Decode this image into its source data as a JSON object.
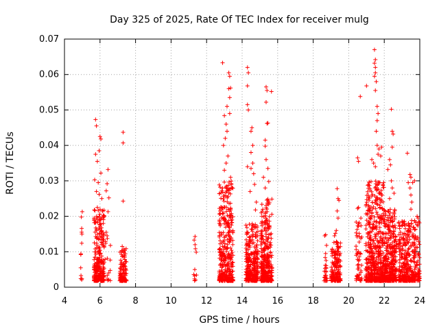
{
  "chart_data": {
    "type": "scatter",
    "title": "Day 325 of 2025, Rate Of TEC Index for receiver mulg",
    "xlabel": "GPS time / hours",
    "ylabel": "ROTI / TECUs",
    "xlim": [
      4,
      24
    ],
    "ylim": [
      0,
      0.07
    ],
    "grid": true,
    "marker": "+",
    "marker_color": "#ff0000",
    "x_ticks": [
      "4",
      "6",
      "8",
      "10",
      "12",
      "14",
      "16",
      "18",
      "20",
      "22",
      "24"
    ],
    "y_ticks": [
      "0",
      "0.01",
      "0.02",
      "0.03",
      "0.04",
      "0.05",
      "0.06",
      "0.07"
    ],
    "series": [
      {
        "name": "ROTI",
        "clusters": [
          {
            "x_range": [
              4.9,
              5.0
            ],
            "count": 10,
            "y_max": 0.021,
            "peaks": [
              [
                5.0,
                0.0213
              ],
              [
                4.95,
                0.0198
              ],
              [
                4.97,
                0.0124
              ]
            ]
          },
          {
            "x_range": [
              5.65,
              6.25
            ],
            "count": 260,
            "y_max": 0.022,
            "peaks": [
              [
                5.75,
                0.0473
              ],
              [
                5.8,
                0.0455
              ],
              [
                6.0,
                0.0425
              ],
              [
                6.05,
                0.0418
              ],
              [
                5.95,
                0.0385
              ],
              [
                5.75,
                0.0375
              ],
              [
                5.85,
                0.0355
              ],
              [
                6.05,
                0.0322
              ],
              [
                5.7,
                0.0303
              ],
              [
                5.9,
                0.0295
              ],
              [
                5.8,
                0.027
              ],
              [
                5.95,
                0.0262
              ],
              [
                6.1,
                0.025
              ],
              [
                5.85,
                0.0225
              ],
              [
                6.15,
                0.0215
              ],
              [
                6.1,
                0.0195
              ]
            ]
          },
          {
            "x_range": [
              6.25,
              6.6
            ],
            "count": 14,
            "y_max": 0.015,
            "peaks": [
              [
                6.45,
                0.0332
              ],
              [
                6.4,
                0.0292
              ],
              [
                6.35,
                0.0272
              ],
              [
                6.5,
                0.0252
              ],
              [
                6.45,
                0.0213
              ],
              [
                6.35,
                0.0155
              ],
              [
                6.4,
                0.0145
              ]
            ]
          },
          {
            "x_range": [
              7.1,
              7.5
            ],
            "count": 110,
            "y_max": 0.011,
            "peaks": [
              [
                7.3,
                0.0437
              ],
              [
                7.3,
                0.0407
              ],
              [
                7.3,
                0.0243
              ],
              [
                7.25,
                0.0115
              ]
            ]
          },
          {
            "x_range": [
              11.25,
              11.45
            ],
            "count": 9,
            "y_max": 0.0145,
            "peaks": [
              [
                11.35,
                0.0143
              ],
              [
                11.3,
                0.0133
              ],
              [
                11.35,
                0.012
              ]
            ]
          },
          {
            "x_range": [
              12.7,
              13.5
            ],
            "count": 360,
            "y_max": 0.03,
            "peaks": [
              [
                12.9,
                0.0633
              ],
              [
                13.25,
                0.0605
              ],
              [
                13.3,
                0.0595
              ],
              [
                13.35,
                0.0562
              ],
              [
                13.25,
                0.056
              ],
              [
                13.3,
                0.0535
              ],
              [
                13.15,
                0.051
              ],
              [
                13.3,
                0.049
              ],
              [
                13.0,
                0.0484
              ],
              [
                13.1,
                0.046
              ],
              [
                13.15,
                0.044
              ],
              [
                13.05,
                0.042
              ],
              [
                12.95,
                0.04
              ],
              [
                13.2,
                0.037
              ],
              [
                13.1,
                0.035
              ],
              [
                13.0,
                0.033
              ],
              [
                13.35,
                0.031
              ]
            ]
          },
          {
            "x_range": [
              14.2,
              14.9
            ],
            "count": 300,
            "y_max": 0.018,
            "peaks": [
              [
                14.3,
                0.062
              ],
              [
                14.35,
                0.0605
              ],
              [
                14.3,
                0.0568
              ],
              [
                14.3,
                0.0515
              ],
              [
                14.35,
                0.05
              ],
              [
                14.55,
                0.045
              ],
              [
                14.5,
                0.044
              ],
              [
                14.6,
                0.04
              ],
              [
                14.5,
                0.038
              ],
              [
                14.6,
                0.035
              ],
              [
                14.5,
                0.0335
              ],
              [
                14.3,
                0.034
              ],
              [
                14.65,
                0.032
              ],
              [
                14.7,
                0.029
              ],
              [
                14.45,
                0.027
              ],
              [
                14.8,
                0.024
              ],
              [
                14.75,
                0.0218
              ]
            ]
          },
          {
            "x_range": [
              15.05,
              15.7
            ],
            "count": 320,
            "y_max": 0.025,
            "peaks": [
              [
                15.35,
                0.0565
              ],
              [
                15.4,
                0.0555
              ],
              [
                15.65,
                0.0552
              ],
              [
                15.35,
                0.0522
              ],
              [
                15.4,
                0.0462
              ],
              [
                15.45,
                0.0463
              ],
              [
                15.3,
                0.0415
              ],
              [
                15.3,
                0.0398
              ],
              [
                15.35,
                0.036
              ],
              [
                15.45,
                0.0335
              ],
              [
                15.2,
                0.031
              ],
              [
                15.5,
                0.0298
              ],
              [
                15.3,
                0.028
              ]
            ]
          },
          {
            "x_range": [
              18.6,
              18.8
            ],
            "count": 25,
            "y_max": 0.009,
            "peaks": [
              [
                18.7,
                0.0148
              ],
              [
                18.65,
                0.0145
              ],
              [
                18.75,
                0.0118
              ],
              [
                18.7,
                0.0095
              ]
            ]
          },
          {
            "x_range": [
              19.0,
              19.55
            ],
            "count": 160,
            "y_max": 0.013,
            "peaks": [
              [
                19.35,
                0.0278
              ],
              [
                19.4,
                0.025
              ],
              [
                19.45,
                0.0245
              ],
              [
                19.35,
                0.0215
              ],
              [
                19.4,
                0.0195
              ],
              [
                19.3,
                0.016
              ],
              [
                19.25,
                0.0152
              ],
              [
                19.2,
                0.0145
              ]
            ]
          },
          {
            "x_range": [
              20.4,
              20.75
            ],
            "count": 55,
            "y_max": 0.02,
            "peaks": [
              [
                20.5,
                0.0365
              ],
              [
                20.55,
                0.0355
              ],
              [
                20.65,
                0.0538
              ],
              [
                20.55,
                0.0225
              ],
              [
                20.5,
                0.0222
              ]
            ]
          },
          {
            "x_range": [
              20.95,
              22.0
            ],
            "count": 520,
            "y_max": 0.03,
            "peaks": [
              [
                21.45,
                0.067
              ],
              [
                21.5,
                0.0642
              ],
              [
                21.45,
                0.0632
              ],
              [
                21.5,
                0.062
              ],
              [
                21.5,
                0.0605
              ],
              [
                21.45,
                0.0595
              ],
              [
                21.55,
                0.058
              ],
              [
                21.0,
                0.0568
              ],
              [
                21.5,
                0.0555
              ],
              [
                21.6,
                0.051
              ],
              [
                21.65,
                0.049
              ],
              [
                21.6,
                0.047
              ],
              [
                21.55,
                0.044
              ],
              [
                21.6,
                0.04
              ],
              [
                21.7,
                0.039
              ],
              [
                21.65,
                0.0375
              ],
              [
                21.3,
                0.036
              ],
              [
                21.4,
                0.035
              ],
              [
                21.5,
                0.034
              ],
              [
                21.8,
                0.037
              ],
              [
                21.85,
                0.0395
              ]
            ]
          },
          {
            "x_range": [
              22.0,
              22.7
            ],
            "count": 340,
            "y_max": 0.022,
            "peaks": [
              [
                22.4,
                0.0502
              ],
              [
                22.45,
                0.044
              ],
              [
                22.5,
                0.0432
              ],
              [
                22.45,
                0.0395
              ],
              [
                22.3,
                0.036
              ],
              [
                22.35,
                0.0345
              ],
              [
                22.2,
                0.0332
              ],
              [
                22.4,
                0.03
              ],
              [
                22.45,
                0.028
              ],
              [
                22.55,
                0.0265
              ],
              [
                22.3,
                0.025
              ]
            ]
          },
          {
            "x_range": [
              22.8,
              24.0
            ],
            "count": 380,
            "y_max": 0.019,
            "peaks": [
              [
                23.3,
                0.0378
              ],
              [
                23.45,
                0.0318
              ],
              [
                23.5,
                0.031
              ],
              [
                23.35,
                0.0295
              ],
              [
                23.45,
                0.028
              ],
              [
                23.6,
                0.0295
              ],
              [
                23.7,
                0.03
              ],
              [
                23.5,
                0.026
              ],
              [
                23.55,
                0.024
              ],
              [
                23.5,
                0.022
              ],
              [
                23.85,
                0.02
              ],
              [
                23.9,
                0.0195
              ]
            ]
          }
        ]
      }
    ]
  }
}
